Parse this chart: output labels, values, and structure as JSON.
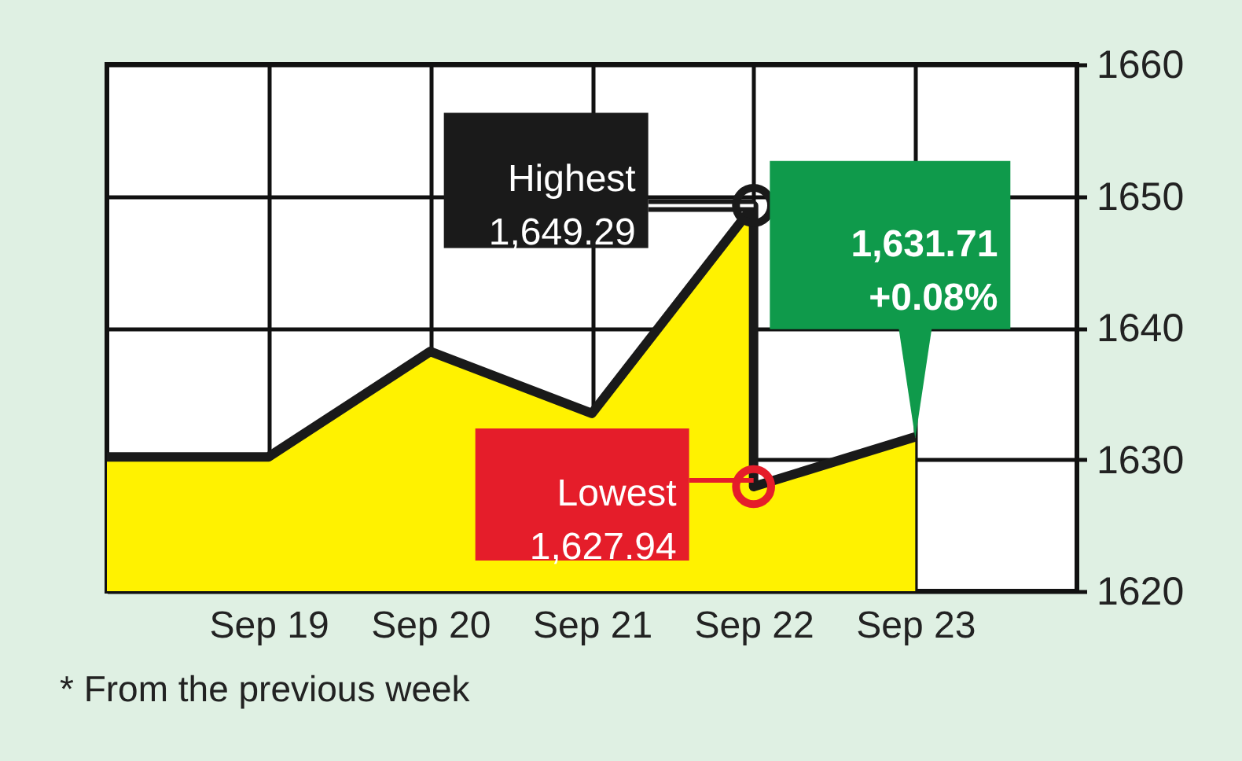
{
  "chart_data": {
    "type": "area",
    "x": [
      "--09-18",
      "--09-19",
      "--09-20",
      "--09-21",
      "--09-22",
      "--09-22",
      "--09-23"
    ],
    "series": [
      {
        "color": "#fff200",
        "values": [
          1630.2,
          1630.2,
          1638.2,
          1633.5,
          1649.29,
          1627.94,
          1631.71
        ]
      }
    ],
    "xlim": [
      "--09-18",
      "--09-24"
    ],
    "xticks": [
      {
        "value": "--09-19",
        "label": "Sep 19"
      },
      {
        "value": "--09-20",
        "label": "Sep 20"
      },
      {
        "value": "--09-21",
        "label": "Sep 21"
      },
      {
        "value": "--09-22",
        "label": "Sep 22"
      },
      {
        "value": "--09-23",
        "label": "Sep 23"
      }
    ],
    "ylim": [
      1620,
      1660
    ],
    "yticks": [
      1620,
      1630,
      1640,
      1650,
      1660
    ],
    "grid": true,
    "line_style": "solid",
    "annotations": [
      {
        "text": "Highest\n1,649.29",
        "x": "--09-22",
        "y": 1649.29
      },
      {
        "text": "Lowest\n1,627.94",
        "x": "--09-22",
        "y": 1627.94
      },
      {
        "text": "1,631.71\n+0.08%",
        "x": "--09-23",
        "y": 1631.71
      },
      "* From the previous week"
    ]
  }
}
